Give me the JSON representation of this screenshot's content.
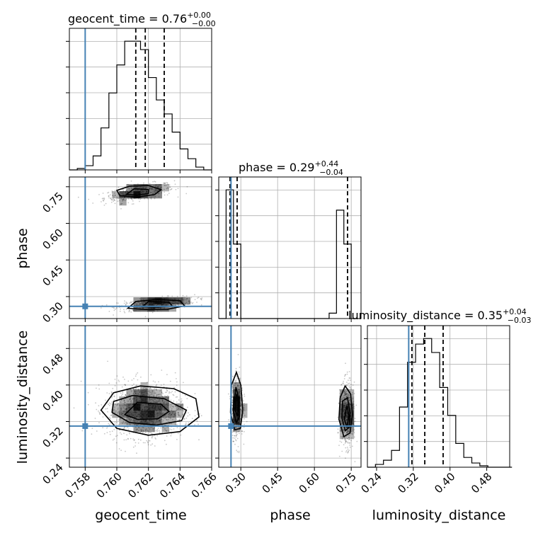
{
  "colors": {
    "truth": "#4682b4",
    "ink": "#000000",
    "grid": "#b0b0b0"
  },
  "chart_data": {
    "type": "corner",
    "parameters": [
      "geocent_time",
      "phase",
      "luminosity_distance"
    ],
    "truths": {
      "geocent_time": 0.758,
      "phase": 0.26,
      "luminosity_distance": 0.31
    },
    "axes": {
      "geocent_time": {
        "range": [
          0.757,
          0.766
        ],
        "ticks": [
          0.758,
          0.76,
          0.762,
          0.764,
          0.766
        ],
        "tick_labels": [
          "0.758",
          "0.760",
          "0.762",
          "0.764",
          "0.766"
        ],
        "label": "geocent_time"
      },
      "phase": {
        "range": [
          0.21,
          0.79
        ],
        "ticks": [
          0.3,
          0.45,
          0.6,
          0.75
        ],
        "tick_labels": [
          "0.30",
          "0.45",
          "0.60",
          "0.75"
        ],
        "label": "phase"
      },
      "luminosity_distance": {
        "range": [
          0.22,
          0.53
        ],
        "ticks": [
          0.24,
          0.32,
          0.4,
          0.48
        ],
        "tick_labels": [
          "0.24",
          "0.32",
          "0.40",
          "0.48"
        ],
        "label": "luminosity_distance"
      }
    },
    "titles": [
      {
        "param": "geocent_time",
        "prefix": "geocent_time = 0.76",
        "sup": "+0.00",
        "sub": "−0.00"
      },
      {
        "param": "phase",
        "prefix": "phase = 0.29",
        "sup": "+0.44",
        "sub": "−0.04"
      },
      {
        "param": "luminosity_distance",
        "prefix": "luminosity_distance = 0.35",
        "sup": "+0.04",
        "sub": "−0.03"
      }
    ],
    "quantiles": {
      "geocent_time": [
        0.7612,
        0.7618,
        0.763
      ],
      "phase": [
        0.256,
        0.285,
        0.735
      ],
      "luminosity_distance": [
        0.317,
        0.345,
        0.385
      ]
    },
    "histograms": {
      "geocent_time": {
        "edges": [
          0.757,
          0.7575,
          0.758,
          0.7585,
          0.759,
          0.7595,
          0.76,
          0.7605,
          0.761,
          0.7615,
          0.762,
          0.7625,
          0.763,
          0.7635,
          0.764,
          0.7645,
          0.765,
          0.7655,
          0.766
        ],
        "counts": [
          0,
          1,
          3,
          10,
          30,
          55,
          75,
          92,
          92,
          86,
          66,
          50,
          40,
          27,
          15,
          8,
          2,
          0
        ]
      },
      "phase": {
        "edges": [
          0.21,
          0.24,
          0.27,
          0.3,
          0.33,
          0.36,
          0.39,
          0.42,
          0.45,
          0.48,
          0.51,
          0.54,
          0.57,
          0.6,
          0.63,
          0.66,
          0.69,
          0.72,
          0.75,
          0.78
        ],
        "counts": [
          0,
          95,
          55,
          0,
          0,
          0,
          0,
          0,
          0,
          0,
          0,
          0,
          0,
          0,
          0,
          4,
          80,
          55,
          0
        ]
      },
      "luminosity_distance": {
        "edges": [
          0.22,
          0.2375,
          0.255,
          0.2725,
          0.29,
          0.3075,
          0.325,
          0.3425,
          0.36,
          0.3775,
          0.395,
          0.4125,
          0.43,
          0.4475,
          0.465,
          0.4825,
          0.5,
          0.5175,
          0.535
        ],
        "counts": [
          0,
          2,
          5,
          12,
          43,
          75,
          88,
          92,
          82,
          57,
          37,
          17,
          7,
          3,
          1,
          0,
          0,
          0
        ]
      }
    },
    "pairs": [
      {
        "x": "geocent_time",
        "y": "phase",
        "clusters": [
          {
            "center": [
              0.7614,
              0.725
            ],
            "spread": [
              0.0011,
              0.016
            ],
            "tilt": 0.3,
            "n": 420
          },
          {
            "center": [
              0.7625,
              0.27
            ],
            "spread": [
              0.0012,
              0.012
            ],
            "tilt": 0.25,
            "n": 460
          }
        ],
        "contours": [
          {
            "x": [
              0.7602,
              0.7613,
              0.7624,
              0.7628,
              0.762,
              0.7608,
              0.76,
              0.7602
            ],
            "y": [
              0.713,
              0.708,
              0.718,
              0.738,
              0.755,
              0.752,
              0.735,
              0.713
            ]
          },
          {
            "x": [
              0.7606,
              0.7613,
              0.762,
              0.762,
              0.7611,
              0.7606
            ],
            "y": [
              0.718,
              0.716,
              0.722,
              0.738,
              0.742,
              0.718
            ]
          },
          {
            "x": [
              0.7607,
              0.7618,
              0.7632,
              0.7643,
              0.764,
              0.7626,
              0.7612,
              0.7607
            ],
            "y": [
              0.252,
              0.247,
              0.248,
              0.262,
              0.283,
              0.288,
              0.28,
              0.252
            ]
          },
          {
            "x": [
              0.7616,
              0.7626,
              0.7635,
              0.7633,
              0.762,
              0.7616
            ],
            "y": [
              0.258,
              0.256,
              0.262,
              0.277,
              0.28,
              0.258
            ]
          }
        ]
      },
      {
        "x": "geocent_time",
        "y": "luminosity_distance",
        "clusters": [
          {
            "center": [
              0.7618,
              0.345
            ],
            "spread": [
              0.0012,
              0.03
            ],
            "tilt": 0.0,
            "n": 1300
          }
        ],
        "contours": [
          {
            "x": [
              0.759,
              0.76,
              0.762,
              0.764,
              0.7652,
              0.765,
              0.7636,
              0.7615,
              0.7598,
              0.759
            ],
            "y": [
              0.345,
              0.305,
              0.29,
              0.298,
              0.33,
              0.37,
              0.392,
              0.398,
              0.383,
              0.345
            ]
          },
          {
            "x": [
              0.7597,
              0.7608,
              0.7625,
              0.7641,
              0.7644,
              0.763,
              0.761,
              0.7598,
              0.7597
            ],
            "y": [
              0.34,
              0.318,
              0.312,
              0.322,
              0.345,
              0.37,
              0.377,
              0.364,
              0.34
            ]
          },
          {
            "x": [
              0.7605,
              0.7613,
              0.7626,
              0.7633,
              0.7628,
              0.7613,
              0.7605
            ],
            "y": [
              0.335,
              0.325,
              0.326,
              0.342,
              0.358,
              0.362,
              0.335
            ]
          }
        ]
      },
      {
        "x": "phase",
        "y": "luminosity_distance",
        "clusters": [
          {
            "center": [
              0.285,
              0.352
            ],
            "spread": [
              0.012,
              0.032
            ],
            "tilt": 0.0,
            "n": 650
          },
          {
            "center": [
              0.732,
              0.335
            ],
            "spread": [
              0.013,
              0.034
            ],
            "tilt": 0.0,
            "n": 650
          }
        ],
        "contours": [
          {
            "x": [
              0.258,
              0.275,
              0.298,
              0.308,
              0.3,
              0.282,
              0.262,
              0.258
            ],
            "y": [
              0.34,
              0.302,
              0.305,
              0.345,
              0.4,
              0.428,
              0.4,
              0.34
            ]
          },
          {
            "x": [
              0.268,
              0.282,
              0.294,
              0.292,
              0.28,
              0.268
            ],
            "y": [
              0.345,
              0.318,
              0.33,
              0.37,
              0.395,
              0.345
            ]
          },
          {
            "x": [
              0.276,
              0.287,
              0.29,
              0.282,
              0.276
            ],
            "y": [
              0.345,
              0.332,
              0.36,
              0.38,
              0.345
            ]
          },
          {
            "x": [
              0.7,
              0.72,
              0.745,
              0.755,
              0.748,
              0.725,
              0.705,
              0.7
            ],
            "y": [
              0.325,
              0.287,
              0.295,
              0.335,
              0.38,
              0.398,
              0.372,
              0.325
            ]
          },
          {
            "x": [
              0.712,
              0.726,
              0.742,
              0.745,
              0.735,
              0.715,
              0.712
            ],
            "y": [
              0.328,
              0.3,
              0.308,
              0.34,
              0.372,
              0.365,
              0.328
            ]
          },
          {
            "x": [
              0.722,
              0.733,
              0.74,
              0.733,
              0.722
            ],
            "y": [
              0.325,
              0.307,
              0.332,
              0.355,
              0.325
            ]
          }
        ]
      }
    ]
  }
}
